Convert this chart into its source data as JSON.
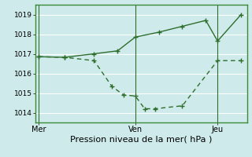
{
  "xlabel": "Pression niveau de la mer( hPa )",
  "background_color": "#ceeaea",
  "grid_color": "#b8d8d8",
  "line_color": "#2d6e2d",
  "border_color": "#3a8a3a",
  "xlim": [
    0,
    18
  ],
  "x_ticks": [
    0.3,
    8.5,
    15.5
  ],
  "x_tick_labels": [
    "Mer",
    "Ven",
    "Jeu"
  ],
  "ylim": [
    1013.5,
    1019.5
  ],
  "yticks": [
    1014,
    1015,
    1016,
    1017,
    1018,
    1019
  ],
  "line1_x": [
    0.3,
    2.5,
    5.0,
    7.0,
    8.5,
    10.5,
    12.5,
    14.5,
    15.5,
    17.5
  ],
  "line1_y": [
    1016.85,
    1016.82,
    1017.0,
    1017.15,
    1017.85,
    1018.1,
    1018.4,
    1018.7,
    1017.65,
    1019.0
  ],
  "line2_x": [
    0.3,
    2.5,
    5.0,
    6.5,
    7.5,
    8.5,
    9.3,
    10.2,
    12.5,
    15.5,
    17.5
  ],
  "line2_y": [
    1016.85,
    1016.82,
    1016.65,
    1015.35,
    1014.9,
    1014.85,
    1014.2,
    1014.2,
    1014.35,
    1016.65,
    1016.65
  ],
  "vline_x": 8.5,
  "vline2_x": 15.5
}
